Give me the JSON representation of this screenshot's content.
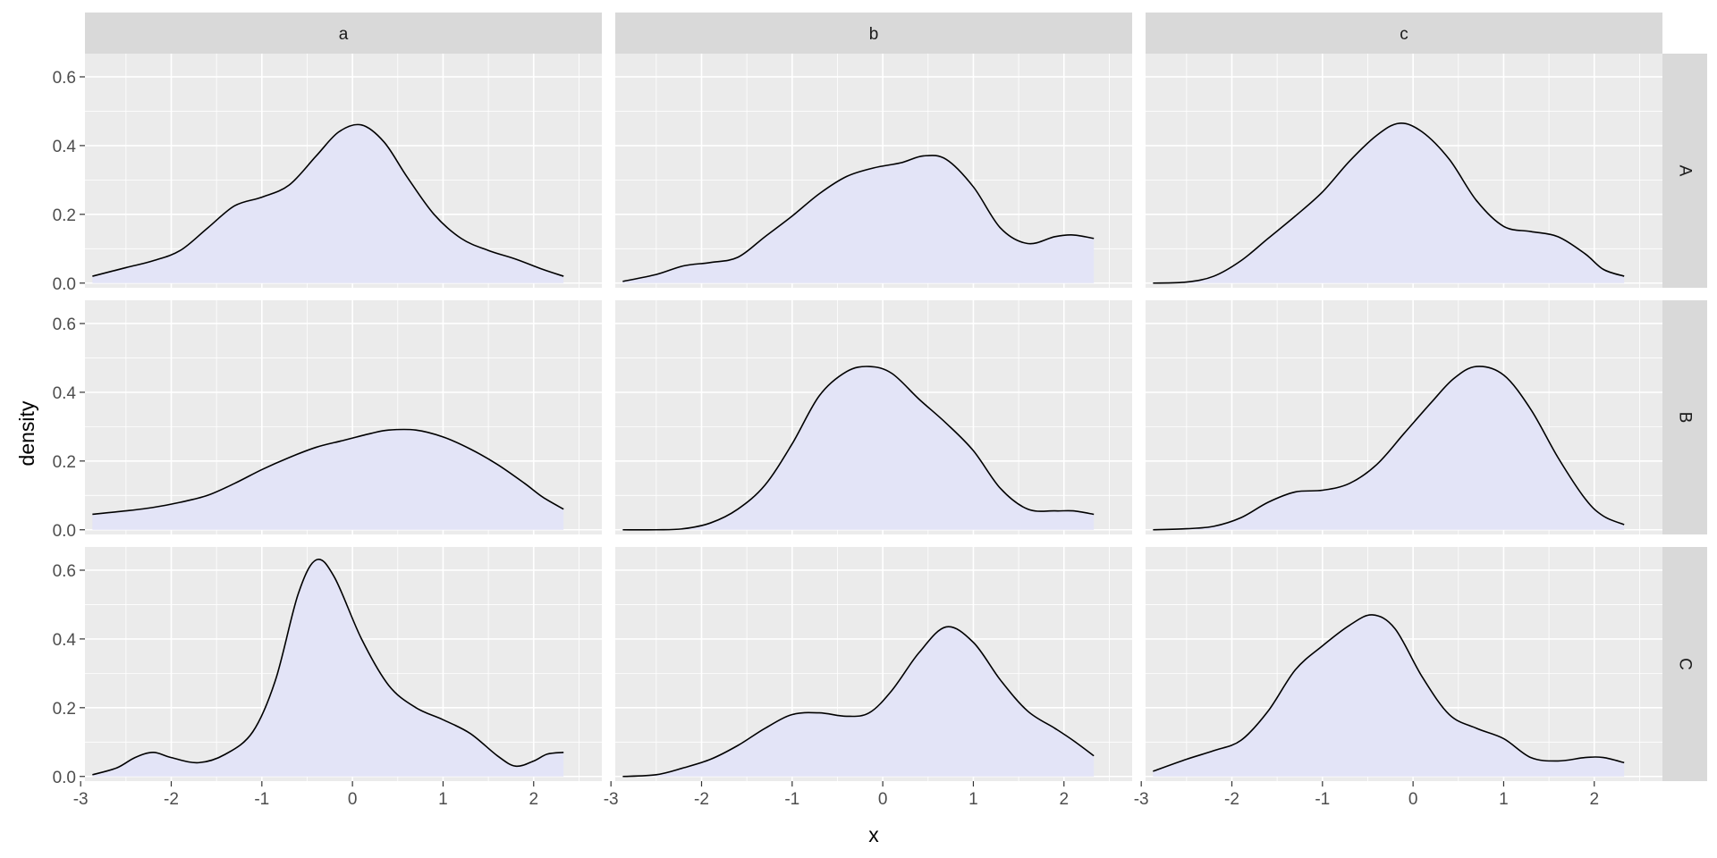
{
  "chart_data": {
    "type": "area",
    "subtype": "faceted density plot (facet grid)",
    "xlabel": "x",
    "ylabel": "density",
    "xlim": [
      -3,
      2.5
    ],
    "ylim": [
      0,
      0.65
    ],
    "x_ticks": [
      -3,
      -2,
      -1,
      0,
      1,
      2
    ],
    "x_tick_labels": [
      "-3",
      "-2",
      "-1",
      "0",
      "1",
      "2"
    ],
    "y_ticks": [
      0.0,
      0.2,
      0.4,
      0.6
    ],
    "y_tick_labels": [
      "0.0",
      "0.2",
      "0.4",
      "0.6"
    ],
    "grid": true,
    "fill_color": "#e3e4f7",
    "line_color": "#000000",
    "panel_background": "#ebebeb",
    "strip_background": "#d9d9d9",
    "col_facets": [
      "a",
      "b",
      "c"
    ],
    "row_facets": [
      "A",
      "B",
      "C"
    ],
    "panels": [
      {
        "row": "A",
        "col": "a",
        "x": [
          -2.87,
          -2.5,
          -2.2,
          -1.9,
          -1.6,
          -1.3,
          -1.0,
          -0.7,
          -0.4,
          -0.15,
          0.1,
          0.35,
          0.6,
          0.9,
          1.2,
          1.5,
          1.8,
          2.1,
          2.33
        ],
        "y": [
          0.02,
          0.045,
          0.065,
          0.095,
          0.16,
          0.225,
          0.25,
          0.285,
          0.37,
          0.44,
          0.46,
          0.41,
          0.31,
          0.2,
          0.13,
          0.095,
          0.07,
          0.04,
          0.02
        ]
      },
      {
        "row": "A",
        "col": "b",
        "x": [
          -2.87,
          -2.5,
          -2.2,
          -1.9,
          -1.6,
          -1.3,
          -1.0,
          -0.7,
          -0.4,
          -0.1,
          0.2,
          0.45,
          0.7,
          1.0,
          1.3,
          1.6,
          1.9,
          2.1,
          2.33
        ],
        "y": [
          0.005,
          0.025,
          0.05,
          0.06,
          0.075,
          0.135,
          0.195,
          0.26,
          0.31,
          0.335,
          0.35,
          0.37,
          0.36,
          0.28,
          0.16,
          0.115,
          0.135,
          0.14,
          0.13
        ]
      },
      {
        "row": "A",
        "col": "c",
        "x": [
          -2.87,
          -2.5,
          -2.2,
          -1.9,
          -1.6,
          -1.3,
          -1.0,
          -0.7,
          -0.4,
          -0.15,
          0.1,
          0.4,
          0.7,
          1.0,
          1.3,
          1.6,
          1.9,
          2.1,
          2.33
        ],
        "y": [
          0.0,
          0.003,
          0.02,
          0.065,
          0.13,
          0.195,
          0.265,
          0.355,
          0.43,
          0.465,
          0.44,
          0.36,
          0.24,
          0.165,
          0.15,
          0.135,
          0.085,
          0.04,
          0.02
        ]
      },
      {
        "row": "B",
        "col": "a",
        "x": [
          -2.87,
          -2.5,
          -2.2,
          -1.9,
          -1.6,
          -1.3,
          -1.0,
          -0.7,
          -0.4,
          -0.1,
          0.2,
          0.4,
          0.7,
          1.0,
          1.3,
          1.6,
          1.9,
          2.1,
          2.33
        ],
        "y": [
          0.045,
          0.055,
          0.065,
          0.08,
          0.1,
          0.135,
          0.175,
          0.21,
          0.24,
          0.26,
          0.28,
          0.29,
          0.29,
          0.27,
          0.235,
          0.19,
          0.135,
          0.095,
          0.06
        ]
      },
      {
        "row": "B",
        "col": "b",
        "x": [
          -2.87,
          -2.5,
          -2.2,
          -1.9,
          -1.6,
          -1.3,
          -1.0,
          -0.7,
          -0.4,
          -0.15,
          0.1,
          0.4,
          0.7,
          1.0,
          1.3,
          1.6,
          1.9,
          2.1,
          2.33
        ],
        "y": [
          0.0,
          0.0,
          0.003,
          0.02,
          0.06,
          0.13,
          0.25,
          0.39,
          0.46,
          0.475,
          0.455,
          0.38,
          0.31,
          0.23,
          0.12,
          0.06,
          0.055,
          0.055,
          0.045
        ]
      },
      {
        "row": "B",
        "col": "c",
        "x": [
          -2.87,
          -2.5,
          -2.2,
          -1.9,
          -1.6,
          -1.3,
          -1.0,
          -0.7,
          -0.4,
          -0.1,
          0.2,
          0.45,
          0.7,
          1.0,
          1.3,
          1.6,
          1.9,
          2.1,
          2.33
        ],
        "y": [
          0.0,
          0.003,
          0.01,
          0.035,
          0.08,
          0.11,
          0.115,
          0.135,
          0.19,
          0.28,
          0.37,
          0.44,
          0.475,
          0.45,
          0.35,
          0.21,
          0.09,
          0.04,
          0.015
        ]
      },
      {
        "row": "C",
        "col": "a",
        "x": [
          -2.87,
          -2.6,
          -2.4,
          -2.2,
          -2.0,
          -1.7,
          -1.4,
          -1.1,
          -0.85,
          -0.6,
          -0.4,
          -0.2,
          0.1,
          0.4,
          0.7,
          1.0,
          1.3,
          1.6,
          1.8,
          2.0,
          2.15,
          2.33
        ],
        "y": [
          0.005,
          0.025,
          0.055,
          0.07,
          0.055,
          0.04,
          0.065,
          0.13,
          0.28,
          0.53,
          0.63,
          0.58,
          0.4,
          0.265,
          0.2,
          0.165,
          0.125,
          0.06,
          0.03,
          0.045,
          0.065,
          0.07
        ]
      },
      {
        "row": "C",
        "col": "b",
        "x": [
          -2.87,
          -2.5,
          -2.2,
          -1.9,
          -1.6,
          -1.3,
          -1.0,
          -0.7,
          -0.4,
          -0.15,
          0.1,
          0.4,
          0.7,
          1.0,
          1.3,
          1.6,
          1.9,
          2.1,
          2.33
        ],
        "y": [
          0.0,
          0.005,
          0.025,
          0.05,
          0.09,
          0.14,
          0.18,
          0.185,
          0.175,
          0.185,
          0.25,
          0.36,
          0.435,
          0.39,
          0.28,
          0.19,
          0.14,
          0.105,
          0.06
        ]
      },
      {
        "row": "C",
        "col": "c",
        "x": [
          -2.87,
          -2.5,
          -2.2,
          -1.9,
          -1.6,
          -1.3,
          -1.0,
          -0.7,
          -0.45,
          -0.2,
          0.1,
          0.4,
          0.7,
          1.0,
          1.3,
          1.6,
          1.9,
          2.1,
          2.33
        ],
        "y": [
          0.015,
          0.05,
          0.075,
          0.105,
          0.19,
          0.31,
          0.38,
          0.44,
          0.47,
          0.43,
          0.29,
          0.18,
          0.14,
          0.11,
          0.055,
          0.045,
          0.055,
          0.055,
          0.04
        ]
      }
    ]
  }
}
